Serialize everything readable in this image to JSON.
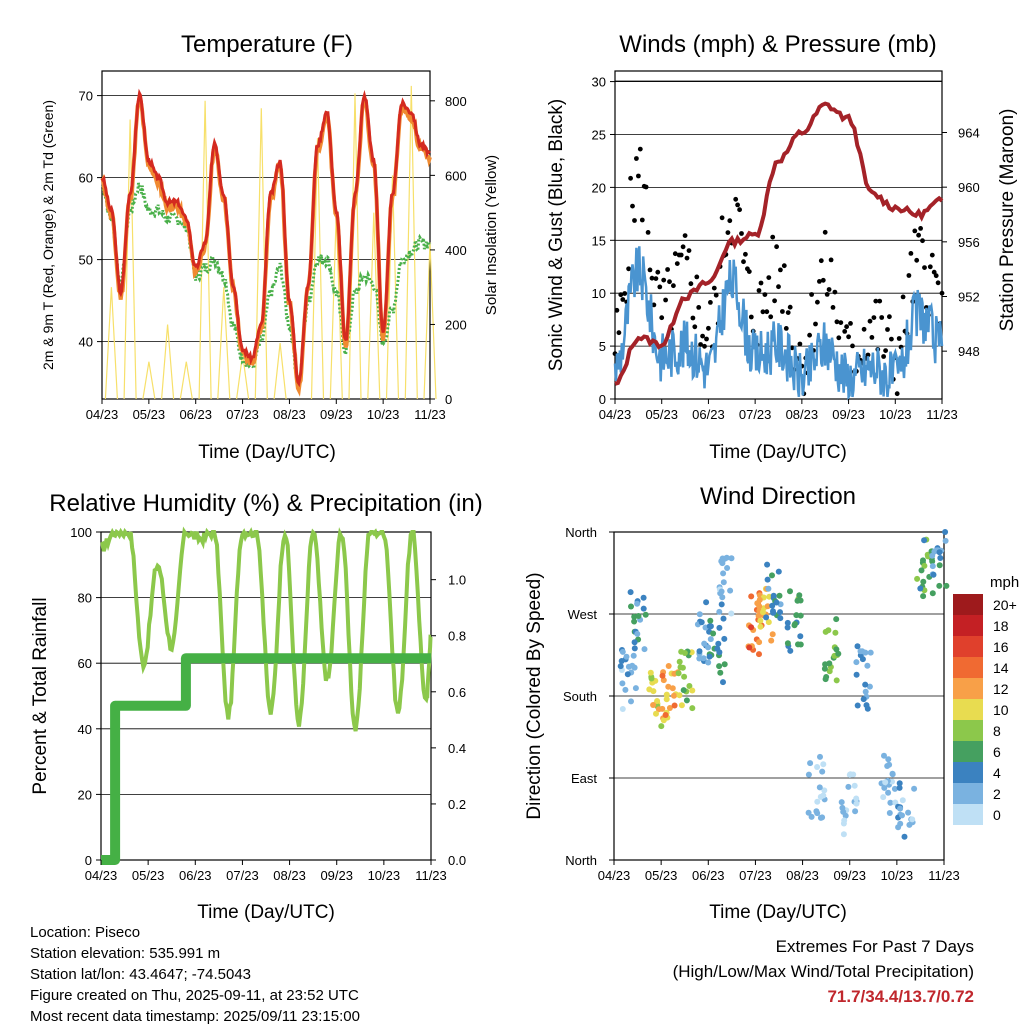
{
  "months": [
    "04/23",
    "05/23",
    "06/23",
    "07/23",
    "08/23",
    "09/23",
    "10/23",
    "11/23"
  ],
  "colors": {
    "temp2m": "#d42a20",
    "temp9m": "#f08a30",
    "dewpoint": "#4ab04a",
    "solar": "#f7e06a",
    "wind": "#4a94d0",
    "gust": "#000000",
    "pressure": "#a42228",
    "rh": "#8cc84b",
    "precip": "#45b045",
    "extremes": "#c0272d"
  },
  "panels": {
    "temperature": {
      "title": "Temperature (F)",
      "ylabel_left": "2m & 9m T (Red, Orange) & 2m Td (Green)",
      "ylabel_right": "Solar Insolation (Yellow)",
      "xlabel": "Time (Day/UTC)",
      "left_ticks": [
        "40",
        "50",
        "60",
        "70"
      ],
      "right_ticks": [
        "0",
        "200",
        "400",
        "600",
        "800"
      ]
    },
    "winds": {
      "title": "Winds (mph) & Pressure (mb)",
      "ylabel_left": "Sonic Wind & Gust (Blue, Black)",
      "ylabel_right": "Station Pressure (Maroon)",
      "xlabel": "Time (Day/UTC)",
      "left_ticks": [
        "0",
        "5",
        "10",
        "15",
        "20",
        "25",
        "30"
      ],
      "right_ticks": [
        "948",
        "952",
        "956",
        "960",
        "964"
      ]
    },
    "humidity": {
      "title": "Relative Humidity (%) & Precipitation (in)",
      "ylabel_left": "Percent & Total Rainfall",
      "xlabel": "Time (Day/UTC)",
      "left_ticks": [
        "0",
        "20",
        "40",
        "60",
        "80",
        "100"
      ],
      "right_ticks": [
        "0.0",
        "0.2",
        "0.4",
        "0.6",
        "0.8",
        "1.0"
      ]
    },
    "direction": {
      "title": "Wind Direction",
      "ylabel_left": "Direction (Colored By Speed)",
      "xlabel": "Time (Day/UTC)",
      "left_ticks": [
        "North",
        "East",
        "South",
        "West",
        "North"
      ],
      "legend_title": "mph",
      "legend_labels": [
        "20+",
        "18",
        "16",
        "14",
        "12",
        "10",
        "8",
        "6",
        "4",
        "2",
        "0"
      ],
      "legend_colors": [
        "#9e1a1c",
        "#c42024",
        "#e0402c",
        "#f06a32",
        "#f8a048",
        "#e8dc50",
        "#8cc84b",
        "#45a060",
        "#3b82c0",
        "#7ab2e0",
        "#bfe0f5"
      ]
    }
  },
  "info": {
    "location": "Location: Piseco",
    "elevation": "Station elevation: 535.991 m",
    "latlon": "Station lat/lon: 43.4647; -74.5043",
    "created": "Figure created on Thu, 2025-09-11, at 23:52 UTC",
    "recent": "Most recent data timestamp: 2025/09/11 23:15:00"
  },
  "extremes": {
    "line1": "Extremes For Past 7 Days",
    "line2": "(High/Low/Max Wind/Total Precipitation)",
    "values": "71.7/34.4/13.7/0.72"
  },
  "chart_data": [
    {
      "type": "line",
      "title": "Temperature (F)",
      "xlabel": "Time (Day/UTC)",
      "ylabel": "2m & 9m T (Red, Orange) & 2m Td (Green)",
      "ylim": [
        33,
        73
      ],
      "y2label": "Solar Insolation (Yellow)",
      "y2lim": [
        0,
        880
      ],
      "x": [
        0,
        0.2,
        0.4,
        0.6,
        0.8,
        1.0,
        1.2,
        1.4,
        1.6,
        1.8,
        2.0,
        2.2,
        2.4,
        2.6,
        2.8,
        3.0,
        3.2,
        3.4,
        3.6,
        3.8,
        4.0,
        4.2,
        4.4,
        4.6,
        4.8,
        5.0,
        5.2,
        5.4,
        5.6,
        5.8,
        6.0,
        6.2,
        6.4,
        6.6,
        6.8,
        7.0
      ],
      "series": [
        {
          "name": "2m T",
          "values": [
            60,
            56,
            46,
            58,
            70,
            62,
            60,
            57,
            57,
            55,
            49,
            52,
            64,
            58,
            47,
            39,
            38,
            42,
            58,
            62,
            45,
            35,
            47,
            64,
            68,
            56,
            40,
            58,
            70,
            62,
            41,
            58,
            69,
            68,
            64,
            63
          ]
        },
        {
          "name": "2m Td",
          "values": [
            59,
            55,
            47,
            56,
            59,
            56,
            56,
            55,
            55,
            54,
            48,
            49,
            50,
            48,
            42,
            38,
            37,
            40,
            46,
            49,
            42,
            35,
            45,
            50,
            50,
            46,
            39,
            46,
            48,
            47,
            40,
            44,
            50,
            51,
            52,
            52
          ]
        },
        {
          "name": "Solar",
          "values": [
            0,
            300,
            0,
            750,
            0,
            100,
            0,
            200,
            0,
            100,
            0,
            800,
            0,
            300,
            0,
            120,
            0,
            780,
            0,
            150,
            0,
            0,
            0,
            700,
            0,
            500,
            0,
            820,
            0,
            500,
            0,
            600,
            0,
            840,
            0,
            420
          ]
        }
      ]
    },
    {
      "type": "line",
      "title": "Winds (mph) & Pressure (mb)",
      "xlabel": "Time (Day/UTC)",
      "ylabel": "Sonic Wind & Gust (Blue, Black)",
      "ylim": [
        0,
        31
      ],
      "y2label": "Station Pressure (Maroon)",
      "y2lim": [
        944.5,
        968.5
      ],
      "x": [
        0,
        0.5,
        1.0,
        1.5,
        2.0,
        2.5,
        3.0,
        3.5,
        4.0,
        4.5,
        5.0,
        5.5,
        6.0,
        6.5,
        7.0
      ],
      "series": [
        {
          "name": "Pressure",
          "values": [
            945.5,
            949,
            948.5,
            952,
            953,
            956,
            956.5,
            962,
            964,
            966,
            965,
            959.5,
            958.5,
            958,
            959
          ]
        },
        {
          "name": "Wind",
          "values": [
            3,
            12,
            4,
            5,
            3,
            11,
            4,
            5,
            2,
            5,
            2,
            3,
            2,
            8,
            5
          ]
        },
        {
          "name": "Gust",
          "values": [
            5,
            21,
            8,
            12,
            6,
            18,
            8,
            12,
            4,
            12,
            4,
            7,
            4,
            13,
            10
          ]
        }
      ]
    },
    {
      "type": "line",
      "title": "Relative Humidity (%) & Precipitation (in)",
      "xlabel": "Time (Day/UTC)",
      "ylabel": "Percent & Total Rainfall",
      "ylim": [
        0,
        100
      ],
      "y2lim": [
        0,
        1.17
      ],
      "x": [
        0,
        0.3,
        0.6,
        0.9,
        1.2,
        1.5,
        1.8,
        2.1,
        2.4,
        2.7,
        3.0,
        3.3,
        3.6,
        3.9,
        4.2,
        4.5,
        4.8,
        5.1,
        5.4,
        5.7,
        6.0,
        6.3,
        6.6,
        6.9,
        7.0
      ],
      "series": [
        {
          "name": "RH",
          "values": [
            95,
            100,
            100,
            60,
            90,
            65,
            100,
            98,
            100,
            44,
            100,
            100,
            45,
            100,
            42,
            100,
            55,
            100,
            40,
            100,
            100,
            45,
            100,
            48,
            68
          ]
        },
        {
          "name": "Precip",
          "values": [
            0,
            0.55,
            0.55,
            0.55,
            0.55,
            0.55,
            0.72,
            0.72,
            0.72,
            0.72,
            0.72,
            0.72,
            0.72,
            0.72,
            0.72,
            0.72,
            0.72,
            0.72,
            0.72,
            0.72,
            0.72,
            0.72,
            0.72,
            0.72,
            0.72
          ]
        }
      ]
    },
    {
      "type": "scatter",
      "title": "Wind Direction",
      "xlabel": "Time (Day/UTC)",
      "ylabel": "Direction (Colored By Speed)",
      "ylim": [
        0,
        360
      ],
      "y_tick_labels": [
        "North",
        "East",
        "South",
        "West",
        "North"
      ],
      "legend_title": "mph",
      "x": [
        0.3,
        0.5,
        0.9,
        1.2,
        1.5,
        1.9,
        2.2,
        2.4,
        3.0,
        3.2,
        3.4,
        3.8,
        4.3,
        4.6,
        5.0,
        5.3,
        5.8,
        6.2,
        6.6,
        6.9
      ],
      "y": [
        200,
        260,
        180,
        190,
        200,
        250,
        230,
        300,
        260,
        275,
        290,
        260,
        80,
        230,
        60,
        200,
        80,
        60,
        320,
        330
      ],
      "speed": [
        2,
        4,
        10,
        12,
        8,
        3,
        5,
        2,
        14,
        11,
        4,
        6,
        1,
        7,
        1,
        3,
        1,
        2,
        6,
        4
      ]
    }
  ]
}
